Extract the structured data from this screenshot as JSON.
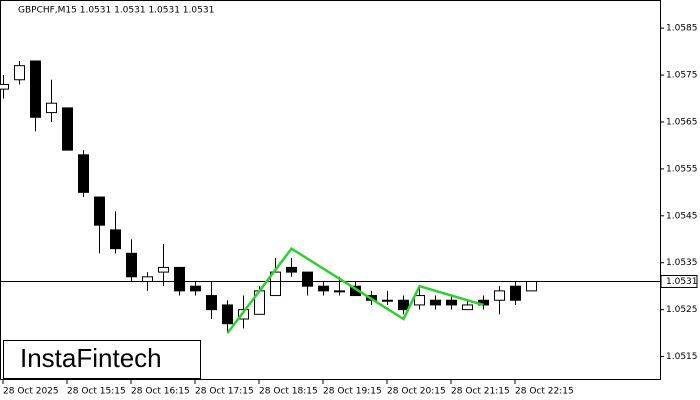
{
  "chart_data": {
    "type": "candlestick",
    "title": "GBPCHF,M15  1.0531 1.0531 1.0531 1.0531",
    "watermark": "InstaFintech",
    "categories": [
      "28 Oct 2025",
      null,
      null,
      null,
      "28 Oct 15:15",
      null,
      null,
      null,
      "28 Oct 16:15",
      null,
      null,
      null,
      "28 Oct 17:15",
      null,
      null,
      null,
      "28 Oct 18:15",
      null,
      null,
      null,
      "28 Oct 19:15",
      null,
      null,
      null,
      "28 Oct 20:15",
      null,
      null,
      null,
      "28 Oct 21:15",
      null,
      null,
      null,
      "28 Oct 22:15",
      null
    ],
    "open": [
      1.0572,
      1.0574,
      1.0578,
      1.0567,
      1.0568,
      1.0558,
      1.0549,
      1.0542,
      1.0537,
      1.0531,
      1.0533,
      1.0534,
      1.053,
      1.0528,
      1.0526,
      1.0523,
      1.0524,
      1.0528,
      1.0534,
      1.0533,
      1.053,
      1.0529,
      1.053,
      1.0528,
      1.0527,
      1.0527,
      1.0526,
      1.0527,
      1.0527,
      1.0525,
      1.0527,
      1.0527,
      1.053,
      1.0529
    ],
    "high": [
      1.0575,
      1.0578,
      1.0578,
      1.0574,
      1.0568,
      1.0559,
      1.0549,
      1.0546,
      1.054,
      1.0533,
      1.0539,
      1.0534,
      1.0531,
      1.0531,
      1.0527,
      1.0528,
      1.053,
      1.0536,
      1.0536,
      1.0533,
      1.0531,
      1.0532,
      1.0531,
      1.0529,
      1.0529,
      1.0528,
      1.053,
      1.0528,
      1.0528,
      1.0527,
      1.0528,
      1.053,
      1.0531,
      1.0531
    ],
    "low": [
      1.057,
      1.0573,
      1.0563,
      1.0565,
      1.0559,
      1.0549,
      1.0537,
      1.0537,
      1.0531,
      1.0529,
      1.053,
      1.0528,
      1.0528,
      1.0523,
      1.052,
      1.0521,
      1.0524,
      1.0528,
      1.0532,
      1.0528,
      1.0528,
      1.0528,
      1.0528,
      1.0526,
      1.0526,
      1.0524,
      1.0525,
      1.0525,
      1.0525,
      1.0525,
      1.0525,
      1.0524,
      1.0526,
      1.0529
    ],
    "close": [
      1.0573,
      1.0577,
      1.0566,
      1.0569,
      1.0559,
      1.055,
      1.0543,
      1.0538,
      1.0532,
      1.0532,
      1.0534,
      1.0529,
      1.0529,
      1.0525,
      1.0522,
      1.0525,
      1.0529,
      1.0533,
      1.0533,
      1.053,
      1.0529,
      1.0529,
      1.0528,
      1.0527,
      1.0527,
      1.0525,
      1.0528,
      1.0526,
      1.0526,
      1.0526,
      1.0526,
      1.0529,
      1.0527,
      1.0531
    ],
    "up_color": "#ffffff",
    "down_color": "#000000",
    "current_price": 1.0531,
    "pattern": {
      "color": "#32cd32",
      "x": [
        14,
        18,
        25,
        26,
        30
      ],
      "values": [
        1.052,
        1.0538,
        1.0523,
        1.053,
        1.0526
      ]
    },
    "ylim": [
      1.051,
      1.0591
    ],
    "yticks": [
      1.0515,
      1.0525,
      1.0535,
      1.0545,
      1.0555,
      1.0565,
      1.0575,
      1.0585
    ]
  }
}
